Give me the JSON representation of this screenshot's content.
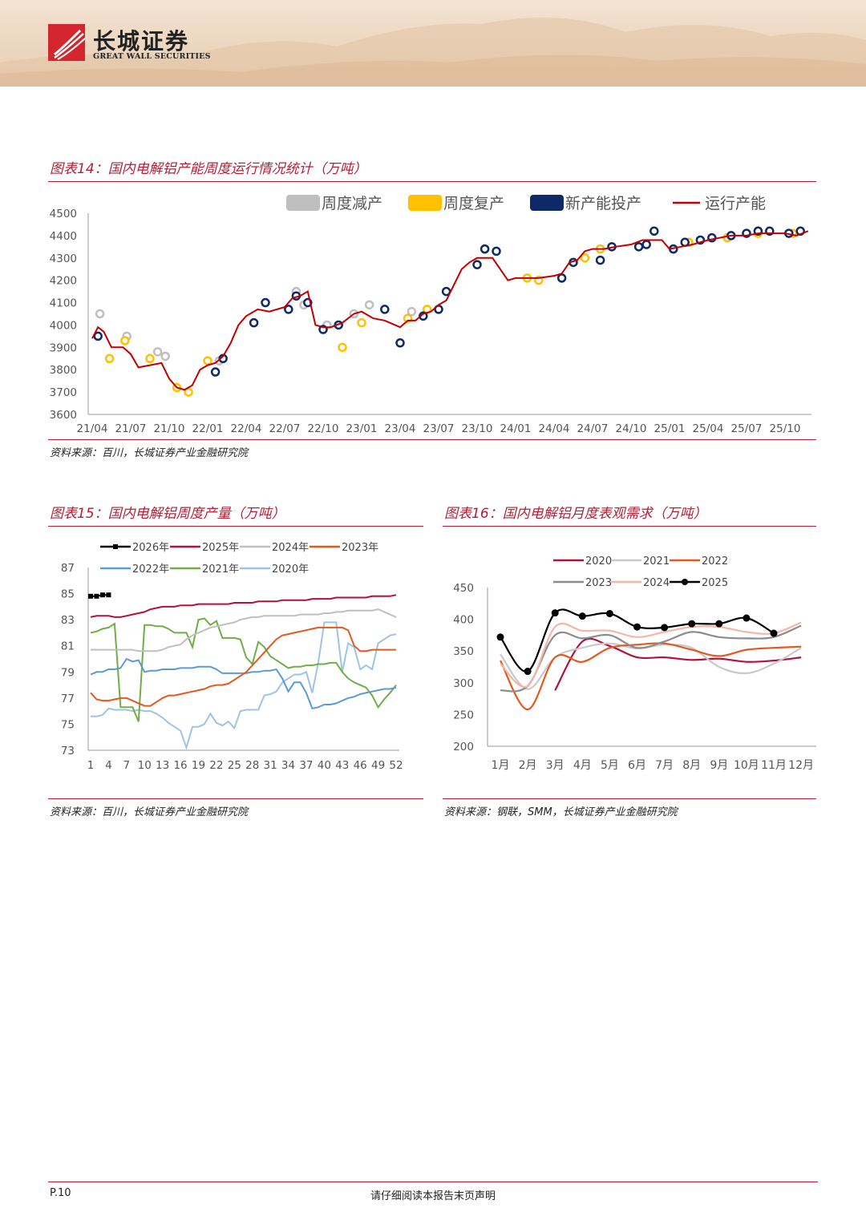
{
  "header": {
    "brand_cn": "长城证券",
    "brand_en": "GREAT WALL SECURITIES",
    "logo_color": "#d3262f"
  },
  "charts": [
    {
      "title": "图表14：国内电解铝产能周度运行情况统计（万吨）",
      "source": "资料来源：百川，长城证券产业金融研究院"
    },
    {
      "title": "图表15：国内电解铝周度产量（万吨）",
      "source": "资料来源：百川，长城证券产业金融研究院"
    },
    {
      "title": "图表16：国内电解铝月度表观需求（万吨）",
      "source": "资料来源：钢联，SMM，长城证券产业金融研究院"
    }
  ],
  "chart_data": [
    {
      "type": "line",
      "title": "图表14：国内电解铝产能周度运行情况统计（万吨）",
      "ylim": [
        3600,
        4500
      ],
      "yticks": [
        "4500",
        "4400",
        "4300",
        "4200",
        "4100",
        "4000",
        "3900",
        "3800",
        "3700",
        "3600"
      ],
      "xlabels": [
        "21/04",
        "21/07",
        "21/10",
        "22/01",
        "22/04",
        "22/07",
        "22/10",
        "23/01",
        "23/04",
        "23/07",
        "23/10",
        "24/01",
        "24/04",
        "24/07",
        "24/10",
        "25/01",
        "25/04",
        "25/07",
        "25/10"
      ],
      "legend": [
        {
          "name": "周度减产",
          "color": "#bfbfbf",
          "kind": "box"
        },
        {
          "name": "周度复产",
          "color": "#ffc000",
          "kind": "box"
        },
        {
          "name": "新产能投产",
          "color": "#0d2a66",
          "kind": "box"
        },
        {
          "name": "运行产能",
          "color": "#c00000",
          "kind": "line"
        }
      ],
      "series": [
        {
          "name": "运行产能",
          "x": [
            0,
            0.15,
            0.3,
            0.5,
            0.8,
            1.0,
            1.2,
            1.5,
            1.8,
            2.0,
            2.2,
            2.4,
            2.6,
            2.8,
            3.0,
            3.2,
            3.4,
            3.6,
            3.8,
            4.0,
            4.3,
            4.6,
            5.0,
            5.2,
            5.4,
            5.6,
            5.8,
            6.0,
            6.2,
            6.5,
            6.8,
            7.0,
            7.3,
            7.6,
            8.0,
            8.2,
            8.4,
            8.6,
            8.8,
            9.0,
            9.2,
            9.4,
            9.6,
            9.8,
            10.0,
            10.2,
            10.4,
            10.6,
            10.8,
            11.0,
            11.3,
            11.6,
            12.0,
            12.2,
            12.4,
            12.6,
            12.8,
            13.0,
            13.3,
            13.6,
            14.0,
            14.3,
            14.6,
            14.8,
            15.0,
            15.3,
            15.6,
            16.0,
            16.3,
            16.6,
            17.0,
            17.3,
            17.6,
            18.0,
            18.3,
            18.6
          ],
          "values": [
            3940,
            3990,
            3970,
            3900,
            3900,
            3870,
            3810,
            3820,
            3830,
            3760,
            3720,
            3710,
            3730,
            3800,
            3820,
            3830,
            3860,
            3920,
            4000,
            4040,
            4070,
            4060,
            4080,
            4120,
            4130,
            4150,
            4000,
            3990,
            3990,
            4010,
            4050,
            4060,
            4030,
            4020,
            3990,
            4020,
            4020,
            4050,
            4060,
            4090,
            4110,
            4180,
            4250,
            4280,
            4300,
            4300,
            4300,
            4250,
            4200,
            4210,
            4210,
            4210,
            4220,
            4230,
            4280,
            4290,
            4330,
            4340,
            4340,
            4350,
            4360,
            4380,
            4380,
            4380,
            4340,
            4350,
            4360,
            4380,
            4390,
            4400,
            4400,
            4410,
            4410,
            4410,
            4400,
            4420
          ]
        },
        {
          "name": "周度减产",
          "x": [
            0.2,
            0.9,
            1.7,
            1.9,
            3.3,
            5.3,
            5.5,
            6.1,
            6.8,
            7.2,
            8.3
          ],
          "values": [
            4050,
            3950,
            3880,
            3860,
            3840,
            4150,
            4090,
            4000,
            4050,
            4090,
            4060
          ]
        },
        {
          "name": "周度复产",
          "x": [
            0.45,
            0.85,
            1.5,
            2.2,
            2.5,
            3.0,
            6.5,
            7.0,
            8.2,
            8.7,
            11.3,
            11.6,
            12.8,
            13.2,
            15.5,
            16.5,
            17.3,
            18.2
          ],
          "values": [
            3850,
            3930,
            3850,
            3720,
            3700,
            3840,
            3900,
            4010,
            4030,
            4070,
            4210,
            4200,
            4300,
            4340,
            4370,
            4390,
            4410,
            4410
          ]
        },
        {
          "name": "新产能投产",
          "x": [
            0.15,
            3.2,
            3.4,
            4.2,
            4.5,
            5.1,
            5.3,
            5.6,
            6.0,
            6.4,
            7.6,
            8.0,
            8.6,
            9.0,
            9.2,
            10.0,
            10.2,
            10.5,
            12.2,
            12.5,
            13.2,
            13.5,
            14.2,
            14.4,
            14.6,
            15.1,
            15.4,
            15.8,
            16.1,
            16.6,
            17.0,
            17.3,
            17.6,
            18.1,
            18.4
          ],
          "values": [
            3950,
            3790,
            3850,
            4010,
            4100,
            4070,
            4130,
            4100,
            3980,
            4000,
            4070,
            3920,
            4040,
            4070,
            4150,
            4270,
            4340,
            4330,
            4210,
            4280,
            4290,
            4350,
            4350,
            4360,
            4420,
            4340,
            4370,
            4380,
            4390,
            4400,
            4410,
            4420,
            4420,
            4410,
            4420
          ]
        }
      ]
    },
    {
      "type": "line",
      "title": "图表15：国内电解铝周度产量（万吨）",
      "ylim": [
        73,
        87
      ],
      "yticks": [
        "87",
        "85",
        "83",
        "81",
        "79",
        "77",
        "75",
        "73"
      ],
      "xlabels": [
        "1",
        "4",
        "7",
        "10",
        "13",
        "16",
        "19",
        "22",
        "25",
        "28",
        "31",
        "34",
        "37",
        "40",
        "43",
        "46",
        "49",
        "52"
      ],
      "legend": [
        "2026年",
        "2025年",
        "2024年",
        "2023年",
        "2022年",
        "2021年",
        "2020年"
      ],
      "series": [
        {
          "name": "2026年",
          "color": "#000000",
          "values": [
            84.8,
            84.8,
            84.9,
            84.9
          ]
        },
        {
          "name": "2025年",
          "color": "#b0123f",
          "values": [
            83.2,
            83.3,
            83.3,
            83.3,
            83.2,
            83.2,
            83.3,
            83.4,
            83.5,
            83.6,
            83.8,
            83.9,
            84.0,
            84.0,
            84.0,
            84.1,
            84.1,
            84.1,
            84.2,
            84.2,
            84.2,
            84.2,
            84.2,
            84.2,
            84.3,
            84.3,
            84.3,
            84.3,
            84.4,
            84.4,
            84.4,
            84.4,
            84.5,
            84.5,
            84.5,
            84.5,
            84.5,
            84.6,
            84.6,
            84.6,
            84.6,
            84.7,
            84.7,
            84.7,
            84.7,
            84.7,
            84.7,
            84.8,
            84.8,
            84.8,
            84.8,
            84.9
          ]
        },
        {
          "name": "2024年",
          "color": "#bfbfbf",
          "values": [
            80.7,
            80.7,
            80.7,
            80.7,
            80.7,
            80.7,
            80.7,
            80.7,
            80.6,
            80.6,
            80.6,
            80.6,
            80.7,
            80.9,
            81.0,
            81.1,
            81.5,
            81.8,
            82.0,
            82.2,
            82.4,
            82.5,
            82.6,
            82.7,
            82.8,
            83.0,
            83.1,
            83.2,
            83.2,
            83.3,
            83.3,
            83.3,
            83.3,
            83.3,
            83.3,
            83.4,
            83.4,
            83.4,
            83.4,
            83.5,
            83.5,
            83.6,
            83.6,
            83.7,
            83.7,
            83.7,
            83.7,
            83.7,
            83.8,
            83.6,
            83.4,
            83.2
          ]
        },
        {
          "name": "2023年",
          "color": "#e05a1e",
          "values": [
            77.4,
            76.9,
            76.8,
            76.8,
            76.9,
            77.0,
            77.0,
            76.8,
            76.6,
            76.4,
            76.4,
            76.7,
            77.0,
            77.2,
            77.2,
            77.3,
            77.4,
            77.5,
            77.6,
            77.7,
            77.9,
            78.0,
            78.0,
            78.1,
            78.4,
            78.7,
            79.0,
            79.5,
            80.0,
            80.5,
            81.0,
            81.5,
            81.8,
            81.9,
            82.0,
            82.1,
            82.2,
            82.3,
            82.4,
            82.4,
            82.4,
            82.4,
            82.4,
            82.2,
            81.0,
            80.6,
            80.6,
            80.7,
            80.7,
            80.7,
            80.7,
            80.7
          ]
        },
        {
          "name": "2022年",
          "color": "#5b9bd5",
          "values": [
            78.8,
            79.0,
            79.0,
            79.2,
            79.2,
            79.3,
            80.0,
            79.8,
            79.9,
            79.0,
            79.1,
            79.1,
            79.2,
            79.2,
            79.2,
            79.3,
            79.3,
            79.3,
            79.4,
            79.4,
            79.4,
            79.2,
            78.9,
            78.9,
            78.9,
            78.9,
            78.9,
            79.0,
            79.0,
            79.1,
            79.1,
            79.2,
            78.5,
            77.5,
            78.2,
            78.2,
            77.4,
            76.2,
            76.3,
            76.5,
            76.5,
            76.6,
            76.8,
            77.0,
            77.1,
            77.3,
            77.4,
            77.5,
            77.6,
            77.7,
            77.7,
            77.8
          ]
        },
        {
          "name": "2021年",
          "color": "#70ad47",
          "values": [
            82.0,
            82.1,
            82.3,
            82.4,
            82.7,
            76.3,
            76.3,
            76.3,
            75.2,
            82.6,
            82.6,
            82.5,
            82.5,
            82.3,
            82.0,
            82.0,
            82.0,
            80.9,
            83.0,
            83.1,
            82.6,
            82.9,
            81.6,
            81.6,
            81.6,
            81.5,
            80.1,
            79.6,
            81.3,
            80.9,
            80.2,
            79.9,
            79.6,
            79.3,
            79.4,
            79.4,
            79.5,
            79.5,
            79.6,
            79.6,
            79.7,
            79.7,
            79.0,
            78.5,
            78.2,
            78.0,
            77.8,
            77.2,
            76.3,
            76.9,
            77.4,
            78.0
          ]
        },
        {
          "name": "2020年",
          "color": "#9dc3e6",
          "values": [
            75.6,
            75.6,
            75.7,
            76.2,
            76.1,
            76.1,
            76.1,
            76.0,
            76.1,
            76.0,
            76.0,
            75.8,
            75.5,
            75.1,
            74.8,
            74.5,
            73.2,
            74.8,
            74.8,
            75.0,
            75.8,
            75.1,
            74.9,
            75.2,
            74.7,
            76.0,
            76.1,
            76.1,
            76.1,
            77.2,
            77.3,
            77.5,
            78.2,
            78.5,
            78.8,
            78.8,
            79.0,
            77.4,
            79.7,
            82.8,
            82.8,
            82.8,
            79.0,
            81.2,
            80.9,
            79.2,
            79.5,
            79.2,
            81.2,
            81.5,
            81.8,
            81.9
          ]
        }
      ]
    },
    {
      "type": "line",
      "title": "图表16：国内电解铝月度表观需求（万吨）",
      "ylim": [
        200,
        450
      ],
      "yticks": [
        "450",
        "400",
        "350",
        "300",
        "250",
        "200"
      ],
      "categories": [
        "1月",
        "2月",
        "3月",
        "4月",
        "5月",
        "6月",
        "7月",
        "8月",
        "9月",
        "10月",
        "11月",
        "12月"
      ],
      "legend": [
        "2020",
        "2021",
        "2022",
        "2023",
        "2024",
        "2025"
      ],
      "series": [
        {
          "name": "2020",
          "color": "#b0123f",
          "values": [
            null,
            null,
            288,
            365,
            358,
            340,
            340,
            336,
            338,
            333,
            335,
            340
          ]
        },
        {
          "name": "2021",
          "color": "#c9c9c9",
          "values": [
            345,
            290,
            340,
            355,
            362,
            354,
            360,
            355,
            325,
            315,
            330,
            355
          ]
        },
        {
          "name": "2022",
          "color": "#e05a1e",
          "values": [
            335,
            258,
            340,
            333,
            355,
            360,
            362,
            352,
            342,
            352,
            355,
            357
          ]
        },
        {
          "name": "2023",
          "color": "#8c8c8c",
          "values": [
            288,
            295,
            375,
            370,
            375,
            355,
            365,
            380,
            372,
            370,
            372,
            390
          ]
        },
        {
          "name": "2024",
          "color": "#f4b6a6",
          "values": [
            330,
            295,
            388,
            382,
            382,
            372,
            380,
            388,
            388,
            380,
            378,
            395
          ]
        },
        {
          "name": "2025",
          "color": "#000000",
          "values": [
            372,
            318,
            410,
            405,
            409,
            388,
            387,
            393,
            393,
            402,
            378,
            null
          ]
        }
      ]
    }
  ],
  "footer": {
    "page": "P.10",
    "notice": "请仔细阅读本报告末页声明"
  }
}
